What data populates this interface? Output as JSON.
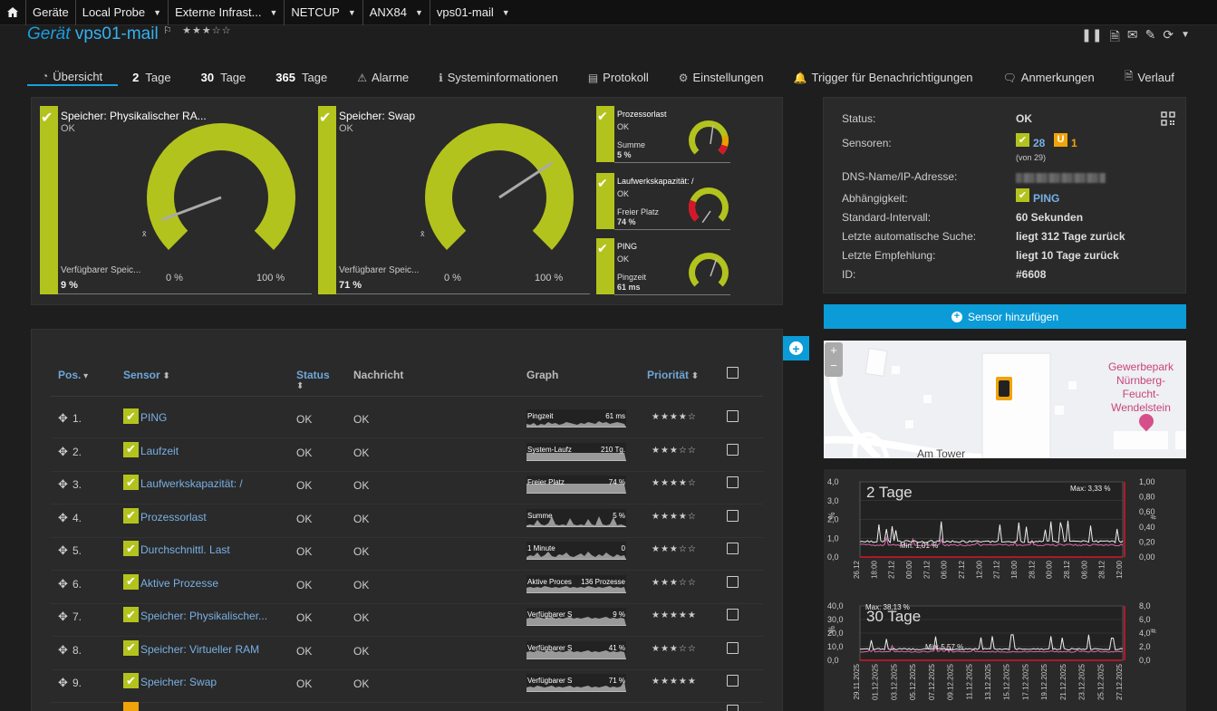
{
  "breadcrumb": {
    "items": [
      "Geräte",
      "Local Probe",
      "Externe Infrast...",
      "NETCUP",
      "ANX84",
      "vps01-mail"
    ]
  },
  "header": {
    "prefix": "Gerät",
    "device": "vps01-mail",
    "stars": "★★★☆☆"
  },
  "tabs": [
    {
      "label": "Übersicht"
    },
    {
      "num": "2",
      "label": "Tage"
    },
    {
      "num": "30",
      "label": "Tage"
    },
    {
      "num": "365",
      "label": "Tage"
    },
    {
      "label": "Alarme"
    },
    {
      "label": "Systeminformationen"
    },
    {
      "label": "Protokoll"
    },
    {
      "label": "Einstellungen"
    },
    {
      "label": "Trigger für Benachrichtigungen"
    },
    {
      "label": "Anmerkungen"
    },
    {
      "label": "Verlauf"
    }
  ],
  "gauges": {
    "big": [
      {
        "title": "Speicher: Physikalischer RA...",
        "status": "OK",
        "channel": "Verfügbarer Speic...",
        "value": "9 %",
        "min": "0 %",
        "max": "100 %",
        "fraction": 0.09
      },
      {
        "title": "Speicher: Swap",
        "status": "OK",
        "channel": "Verfügbarer Speic...",
        "value": "71 %",
        "min": "0 %",
        "max": "100 %",
        "fraction": 0.71
      }
    ],
    "small": [
      {
        "title": "Prozessorlast",
        "status": "OK",
        "channel": "Summe",
        "value": "5 %"
      },
      {
        "title": "Laufwerkskapazität: /",
        "status": "OK",
        "channel": "Freier Platz",
        "value": "74 %"
      },
      {
        "title": "PING",
        "status": "OK",
        "channel": "Pingzeit",
        "value": "61 ms"
      }
    ],
    "xbar": "x̄"
  },
  "table": {
    "headers": {
      "pos": "Pos.",
      "sensor": "Sensor",
      "status": "Status",
      "message": "Nachricht",
      "graph": "Graph",
      "priority": "Priorität"
    },
    "rows": [
      {
        "pos": "1.",
        "name": "PING",
        "status": "OK",
        "msg": "OK",
        "glabel": "Pingzeit",
        "gval": "61 ms",
        "prio": "★★★★☆"
      },
      {
        "pos": "2.",
        "name": "Laufzeit",
        "status": "OK",
        "msg": "OK",
        "glabel": "System-Laufz",
        "gval": "210 Tg.",
        "prio": "★★★☆☆"
      },
      {
        "pos": "3.",
        "name": "Laufwerkskapazität: /",
        "status": "OK",
        "msg": "OK",
        "glabel": "Freier Platz",
        "gval": "74 %",
        "prio": "★★★★☆"
      },
      {
        "pos": "4.",
        "name": "Prozessorlast",
        "status": "OK",
        "msg": "OK",
        "glabel": "Summe",
        "gval": "5 %",
        "prio": "★★★★☆"
      },
      {
        "pos": "5.",
        "name": "Durchschnittl. Last",
        "status": "OK",
        "msg": "OK",
        "glabel": "1 Minute",
        "gval": "0",
        "prio": "★★★☆☆"
      },
      {
        "pos": "6.",
        "name": "Aktive Prozesse",
        "status": "OK",
        "msg": "OK",
        "glabel": "Aktive Proces",
        "gval": "136 Prozesse",
        "prio": "★★★☆☆"
      },
      {
        "pos": "7.",
        "name": "Speicher: Physikalischer...",
        "status": "OK",
        "msg": "OK",
        "glabel": "Verfügbarer S",
        "gval": "9 %",
        "prio": "★★★★★"
      },
      {
        "pos": "8.",
        "name": "Speicher: Virtueller RAM",
        "status": "OK",
        "msg": "OK",
        "glabel": "Verfügbarer S",
        "gval": "41 %",
        "prio": "★★★☆☆"
      },
      {
        "pos": "9.",
        "name": "Speicher: Swap",
        "status": "OK",
        "msg": "OK",
        "glabel": "Verfügbarer S",
        "gval": "71 %",
        "prio": "★★★★★"
      }
    ]
  },
  "info": {
    "rows": [
      {
        "k": "Status:",
        "v": "OK"
      },
      {
        "k": "Sensoren:",
        "v": ""
      },
      {
        "k": "DNS-Name/IP-Adresse:",
        "v": ""
      },
      {
        "k": "Abhängigkeit:",
        "v": "PING"
      },
      {
        "k": "Standard-Intervall:",
        "v": "60 Sekunden"
      },
      {
        "k": "Letzte automatische Suche:",
        "v": "liegt 312 Tage zurück"
      },
      {
        "k": "Letzte Empfehlung:",
        "v": "liegt 10 Tage zurück"
      },
      {
        "k": "ID:",
        "v": "#6608"
      }
    ],
    "sensors_ok": "28",
    "sensors_unusual": "1",
    "sensors_total": "(von 29)",
    "unusual_badge": "U"
  },
  "add_sensor": "Sensor hinzufügen",
  "map": {
    "label": "Gewerbepark\nNürnberg-\nFeucht-\nWendelstein",
    "street": "Am Tower",
    "zoom_in": "+",
    "zoom_out": "−"
  },
  "charts": {
    "c2": {
      "title": "2 Tage",
      "yleft": [
        "4,0",
        "3,0",
        "2,0",
        "1,0",
        "0,0"
      ],
      "yright": [
        "1,00",
        "0,80",
        "0,60",
        "0,40",
        "0,20",
        "0,00"
      ],
      "xlabels": [
        "26.12",
        "18:00",
        "27.12",
        "00:00",
        "27.12",
        "06:00",
        "27.12",
        "12:00",
        "27.12",
        "18:00",
        "28.12",
        "00:00",
        "28.12",
        "06:00",
        "28.12",
        "12:00"
      ],
      "max": "Max: 3,33 %",
      "min": "Min: 1,01 %",
      "unit_left": "%",
      "unit_right": "#"
    },
    "c30": {
      "title": "30 Tage",
      "yleft": [
        "40,0",
        "30,0",
        "20,0",
        "10,0",
        "0,0"
      ],
      "yright": [
        "8,0",
        "6,0",
        "4,0",
        "2,0",
        "0,0"
      ],
      "xlabels": [
        "29.11.2025",
        "01.12.2025",
        "03.12.2025",
        "05.12.2025",
        "07.12.2025",
        "09.12.2025",
        "11.12.2025",
        "13.12.2025",
        "15.12.2025",
        "17.12.2025",
        "19.12.2025",
        "21.12.2025",
        "23.12.2025",
        "25.12.2025",
        "27.12.2025"
      ],
      "max": "Max: 38,13 %",
      "min": "Min: 5,57 %",
      "unit_left": "%",
      "unit_right": "#"
    }
  }
}
